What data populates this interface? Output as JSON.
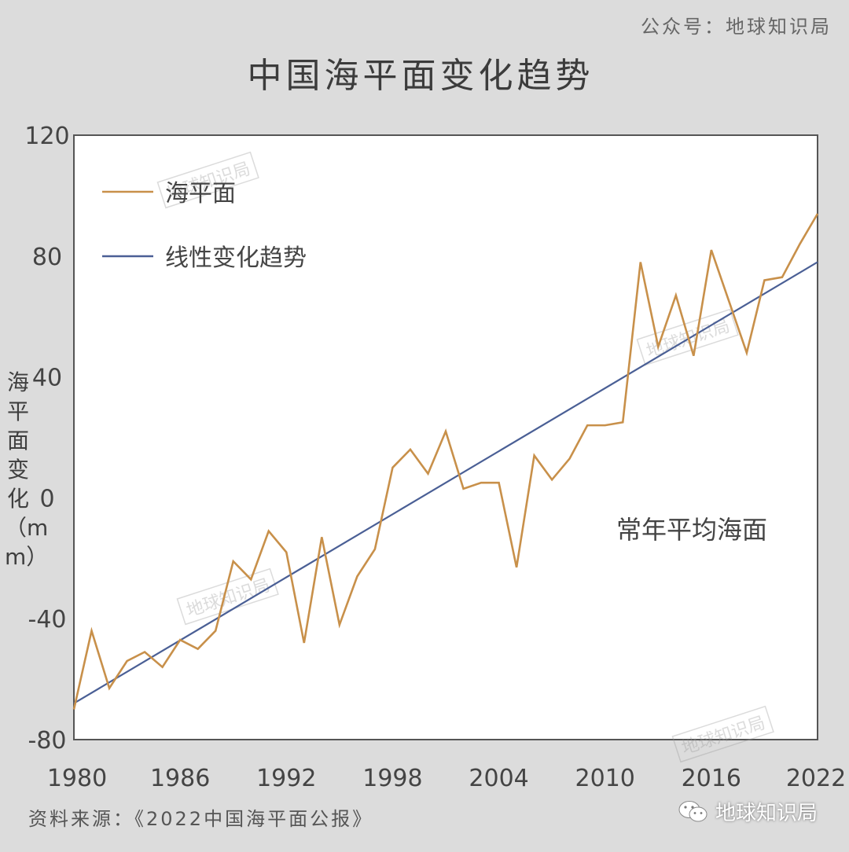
{
  "header": {
    "credit": "公众号：地球知识局",
    "title": "中国海平面变化趋势"
  },
  "footer": {
    "source": "资料来源：《2022中国海平面公报》",
    "brand": "地球知识局"
  },
  "watermark_text": "地球知识局",
  "colors": {
    "background": "#dcdcdc",
    "plot_bg": "#ffffff",
    "sea_level": "#c8904a",
    "trend": "#4a5f95"
  },
  "chart_data": {
    "type": "line",
    "title": "中国海平面变化趋势",
    "xlabel": "",
    "ylabel": "海平面变化（mm）",
    "xlim": [
      1980,
      2022
    ],
    "ylim": [
      -80,
      120
    ],
    "xticks": [
      "1980",
      "1986",
      "1992",
      "1998",
      "2004",
      "2010",
      "2016",
      "2022"
    ],
    "yticks": [
      "120",
      "80",
      "40",
      "0",
      "-40",
      "-80"
    ],
    "annotation": "常年平均海面",
    "legend": [
      "海平面",
      "线性变化趋势"
    ],
    "legend_position": "top-left",
    "grid": false,
    "series": [
      {
        "name": "海平面",
        "x": [
          1980,
          1981,
          1982,
          1983,
          1984,
          1985,
          1986,
          1987,
          1988,
          1989,
          1990,
          1991,
          1992,
          1993,
          1994,
          1995,
          1996,
          1997,
          1998,
          1999,
          2000,
          2001,
          2002,
          2003,
          2004,
          2005,
          2006,
          2007,
          2008,
          2009,
          2010,
          2011,
          2012,
          2013,
          2014,
          2015,
          2016,
          2017,
          2018,
          2019,
          2020,
          2021,
          2022
        ],
        "values": [
          -70,
          -44,
          -63,
          -54,
          -51,
          -56,
          -47,
          -50,
          -44,
          -21,
          -27,
          -11,
          -18,
          -48,
          -13,
          -42,
          -26,
          -17,
          10,
          16,
          8,
          22,
          3,
          5,
          5,
          -23,
          14,
          6,
          13,
          24,
          24,
          25,
          78,
          50,
          67,
          47,
          82,
          65,
          48,
          72,
          73,
          84,
          94
        ]
      },
      {
        "name": "线性变化趋势",
        "x": [
          1980,
          2022
        ],
        "values": [
          -68,
          78
        ]
      }
    ]
  }
}
